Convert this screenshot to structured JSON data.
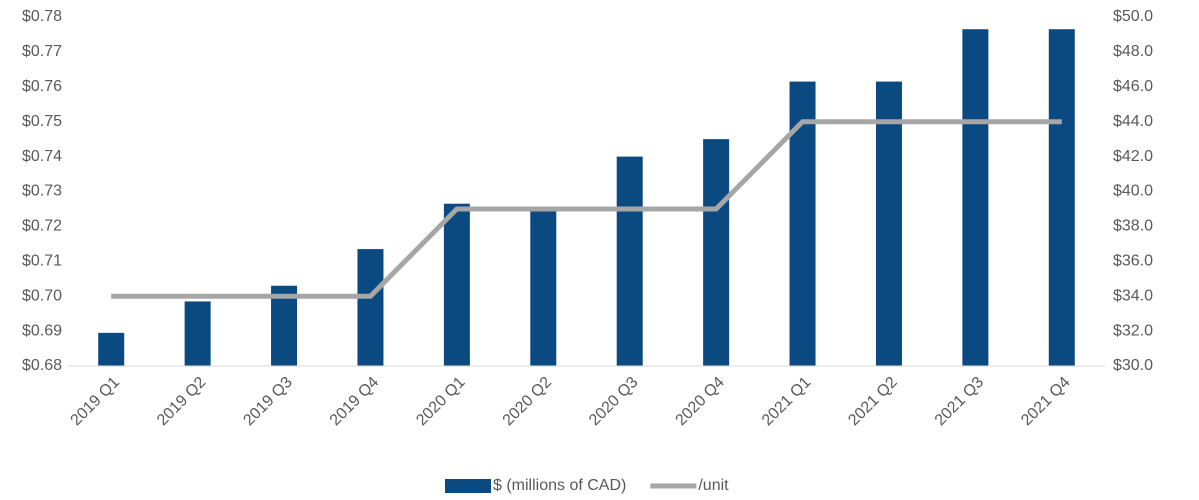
{
  "chart_data": {
    "type": "bar",
    "categories": [
      "2019 Q1",
      "2019 Q2",
      "2019 Q3",
      "2019 Q4",
      "2020 Q1",
      "2020 Q2",
      "2020 Q3",
      "2020 Q4",
      "2021 Q1",
      "2021 Q2",
      "2021 Q3",
      "2021 Q4"
    ],
    "series": [
      {
        "name": "$ (millions of CAD)",
        "type": "bar",
        "axis": "y2",
        "color": "#0b4a80",
        "values": [
          31.9,
          33.7,
          34.6,
          36.7,
          39.3,
          38.9,
          42.0,
          43.0,
          46.3,
          46.3,
          49.3,
          49.3
        ]
      },
      {
        "name": "/unit",
        "type": "line",
        "axis": "y",
        "color": "#a6a6a6",
        "values": [
          0.7,
          0.7,
          0.7,
          0.7,
          0.725,
          0.725,
          0.725,
          0.725,
          0.75,
          0.75,
          0.75,
          0.75
        ]
      }
    ],
    "ylim": [
      0.68,
      0.78
    ],
    "yticks": [
      {
        "value": 0.68,
        "label": "$0.68"
      },
      {
        "value": 0.69,
        "label": "$0.69"
      },
      {
        "value": 0.7,
        "label": "$0.70"
      },
      {
        "value": 0.71,
        "label": "$0.71"
      },
      {
        "value": 0.72,
        "label": "$0.72"
      },
      {
        "value": 0.73,
        "label": "$0.73"
      },
      {
        "value": 0.74,
        "label": "$0.74"
      },
      {
        "value": 0.75,
        "label": "$0.75"
      },
      {
        "value": 0.76,
        "label": "$0.76"
      },
      {
        "value": 0.77,
        "label": "$0.77"
      },
      {
        "value": 0.78,
        "label": "$0.78"
      }
    ],
    "y2lim": [
      30,
      50
    ],
    "y2ticks": [
      {
        "value": 30,
        "label": "$30.0"
      },
      {
        "value": 32,
        "label": "$32.0"
      },
      {
        "value": 34,
        "label": "$34.0"
      },
      {
        "value": 36,
        "label": "$36.0"
      },
      {
        "value": 38,
        "label": "$38.0"
      },
      {
        "value": 40,
        "label": "$40.0"
      },
      {
        "value": 42,
        "label": "$42.0"
      },
      {
        "value": 44,
        "label": "$44.0"
      },
      {
        "value": 46,
        "label": "$46.0"
      },
      {
        "value": 48,
        "label": "$48.0"
      },
      {
        "value": 50,
        "label": "$50.0"
      }
    ],
    "grid": false,
    "legend": "bottom"
  }
}
